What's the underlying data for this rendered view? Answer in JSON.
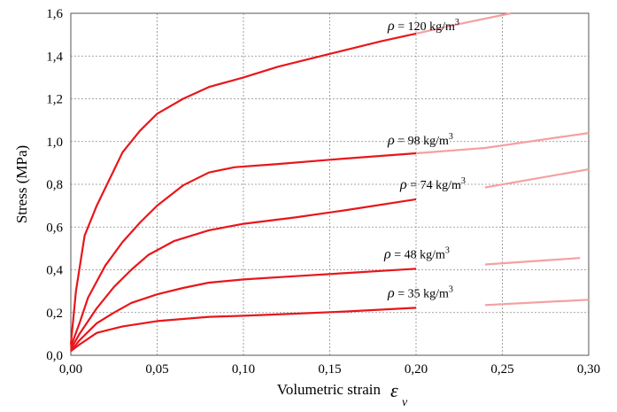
{
  "chart_data": {
    "type": "line",
    "title": "",
    "xlabel": "Volumetric strain",
    "xlabel_symbol": "ε",
    "xlabel_subscript": "v",
    "ylabel": "Stress (MPa)",
    "xlim": [
      0,
      0.3
    ],
    "ylim": [
      0,
      1.6
    ],
    "x_ticks": [
      0,
      0.05,
      0.1,
      0.15,
      0.2,
      0.25,
      0.3
    ],
    "x_tick_labels": [
      "0,00",
      "0,05",
      "0,10",
      "0,15",
      "0,20",
      "0,25",
      "0,30"
    ],
    "y_ticks": [
      0,
      0.2,
      0.4,
      0.6,
      0.8,
      1.0,
      1.2,
      1.4,
      1.6
    ],
    "y_tick_labels": [
      "0,0",
      "0,2",
      "0,4",
      "0,6",
      "0,8",
      "1,0",
      "1,2",
      "1,4",
      "1,6"
    ],
    "grid": true,
    "colors": {
      "measured": "#e8161b",
      "extrapolated": "#f4a0a3",
      "grid": "#8a8a8a"
    },
    "series": [
      {
        "label_prefix": "ρ = 120 kg/m",
        "label_exp": "3",
        "x": [
          0,
          0.003,
          0.008,
          0.015,
          0.03,
          0.04,
          0.05,
          0.065,
          0.08,
          0.1,
          0.12,
          0.15,
          0.18,
          0.2
        ],
        "y": [
          0.05,
          0.3,
          0.56,
          0.7,
          0.95,
          1.05,
          1.13,
          1.2,
          1.255,
          1.3,
          1.35,
          1.41,
          1.47,
          1.505
        ],
        "extrapolated": {
          "x": [
            0.2,
            0.225,
            0.255
          ],
          "y": [
            1.505,
            1.55,
            1.6
          ]
        }
      },
      {
        "label_prefix": "ρ = 98 kg/m",
        "label_exp": "3",
        "x": [
          0,
          0.005,
          0.01,
          0.02,
          0.03,
          0.04,
          0.05,
          0.065,
          0.08,
          0.095,
          0.12,
          0.15,
          0.2
        ],
        "y": [
          0.04,
          0.15,
          0.27,
          0.42,
          0.53,
          0.62,
          0.7,
          0.795,
          0.855,
          0.88,
          0.895,
          0.915,
          0.945
        ],
        "extrapolated": {
          "x": [
            0.2,
            0.24,
            0.3
          ],
          "y": [
            0.945,
            0.97,
            1.04
          ]
        }
      },
      {
        "label_prefix": "ρ = 74 kg/m",
        "label_exp": "3",
        "x": [
          0,
          0.005,
          0.015,
          0.025,
          0.035,
          0.045,
          0.06,
          0.08,
          0.1,
          0.13,
          0.16,
          0.2
        ],
        "y": [
          0.03,
          0.1,
          0.22,
          0.32,
          0.4,
          0.47,
          0.535,
          0.585,
          0.615,
          0.645,
          0.68,
          0.73
        ],
        "extrapolated": {
          "x": [
            0.24,
            0.3
          ],
          "y": [
            0.785,
            0.87
          ]
        }
      },
      {
        "label_prefix": "ρ = 48 kg/m",
        "label_exp": "3",
        "x": [
          0,
          0.005,
          0.015,
          0.025,
          0.035,
          0.05,
          0.065,
          0.08,
          0.1,
          0.13,
          0.16,
          0.2
        ],
        "y": [
          0.02,
          0.07,
          0.15,
          0.2,
          0.245,
          0.285,
          0.315,
          0.34,
          0.355,
          0.37,
          0.385,
          0.405
        ],
        "extrapolated": {
          "x": [
            0.24,
            0.295
          ],
          "y": [
            0.425,
            0.455
          ]
        }
      },
      {
        "label_prefix": "ρ = 35 kg/m",
        "label_exp": "3",
        "x": [
          0,
          0.005,
          0.015,
          0.03,
          0.05,
          0.08,
          0.1,
          0.13,
          0.16,
          0.2
        ],
        "y": [
          0.02,
          0.05,
          0.105,
          0.135,
          0.16,
          0.18,
          0.185,
          0.195,
          0.205,
          0.222
        ],
        "extrapolated": {
          "x": [
            0.24,
            0.3
          ],
          "y": [
            0.235,
            0.26
          ]
        }
      }
    ]
  }
}
